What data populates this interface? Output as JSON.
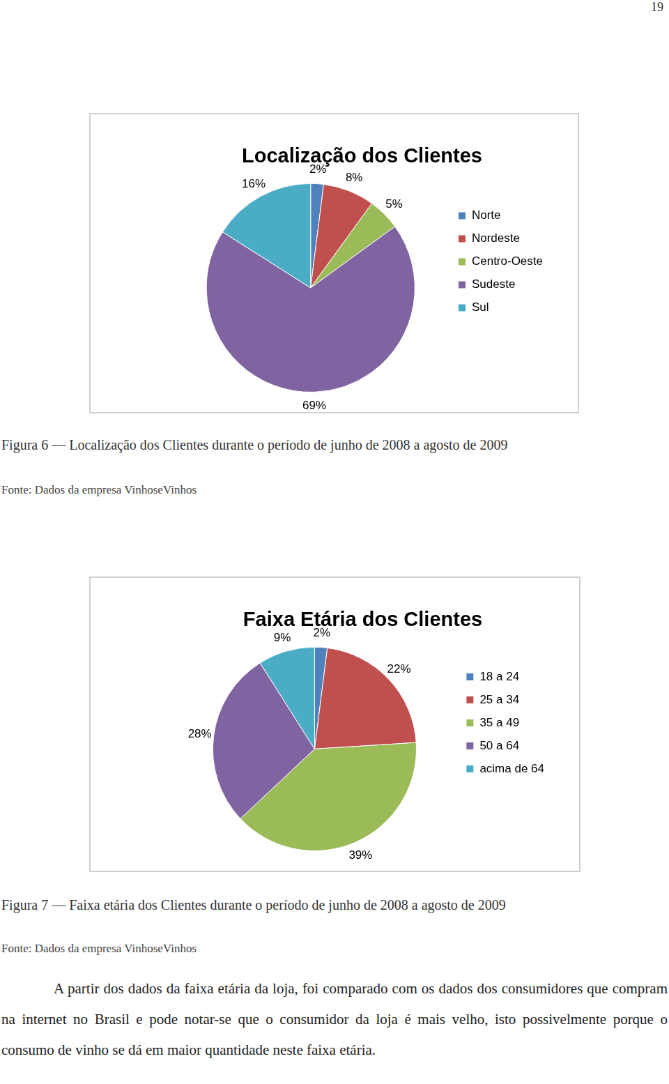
{
  "page_number": "19",
  "chart_data": [
    {
      "type": "pie",
      "title": "Localização dos Clientes",
      "categories": [
        "Norte",
        "Nordeste",
        "Centro-Oeste",
        "Sudeste",
        "Sul"
      ],
      "values": [
        2,
        8,
        5,
        69,
        16
      ],
      "value_labels": [
        "2%",
        "8%",
        "5%",
        "69%",
        "16%"
      ],
      "colors": [
        "#4f81bd",
        "#c0504d",
        "#9bbb59",
        "#8064a2",
        "#4bacc6"
      ],
      "legend": "right",
      "data_labels": true
    },
    {
      "type": "pie",
      "title": "Faixa Etária dos Clientes",
      "categories": [
        "18 a 24",
        "25 a 34",
        "35 a 49",
        "50 a 64",
        "acima de 64"
      ],
      "values": [
        2,
        22,
        39,
        28,
        9
      ],
      "value_labels": [
        "2%",
        "22%",
        "39%",
        "28%",
        "9%"
      ],
      "colors": [
        "#4f81bd",
        "#c0504d",
        "#9bbb59",
        "#8064a2",
        "#4bacc6"
      ],
      "legend": "right",
      "data_labels": true
    }
  ],
  "captions": [
    {
      "figure": "Figura 6 — Localização dos Clientes durante o período de junho de 2008 a agosto de 2009",
      "source": "Fonte: Dados da empresa VinhoseVinhos"
    },
    {
      "figure": "Figura 7 — Faixa etária dos Clientes durante o período de junho de 2008 a agosto de 2009",
      "source": "Fonte: Dados da empresa VinhoseVinhos"
    }
  ],
  "paragraph": "A partir dos dados da faixa etária da loja, foi comparado com os dados dos consumidores que compram na internet no Brasil e pode notar-se que o consumidor da loja é mais velho, isto possivelmente porque o consumo de vinho se dá em maior quantidade neste faixa etária."
}
